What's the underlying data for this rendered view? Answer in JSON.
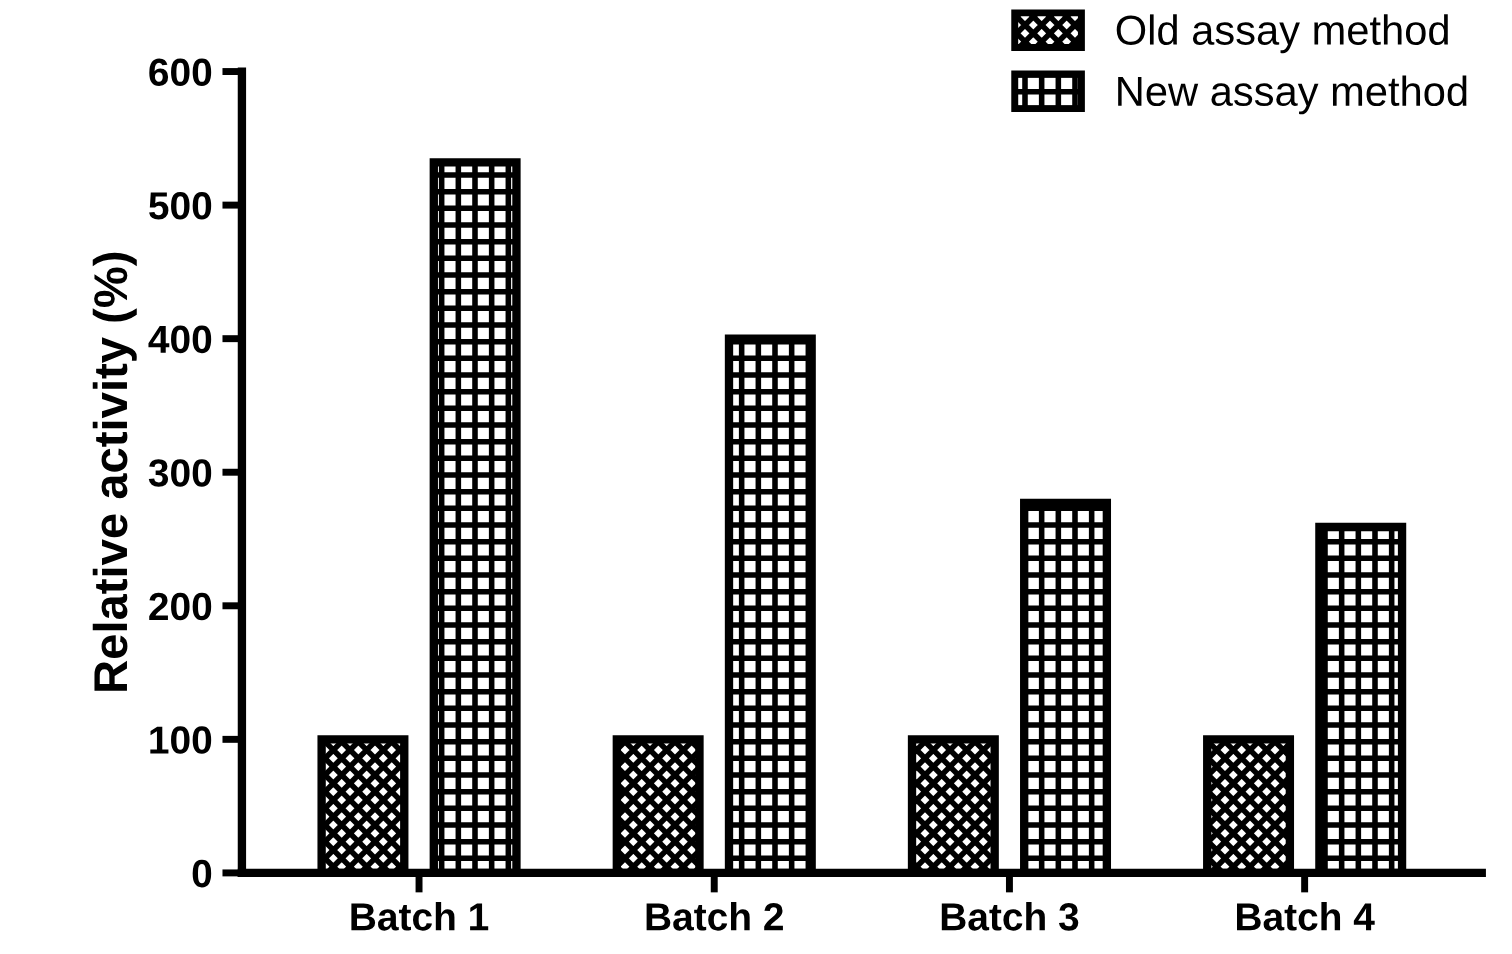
{
  "chart_data": {
    "type": "bar",
    "ylabel": "Relative activity (%)",
    "categories": [
      "Batch 1",
      "Batch 2",
      "Batch 3",
      "Batch 4"
    ],
    "series": [
      {
        "name": "Old assay method",
        "color": "#000000",
        "values": [
          100,
          100,
          100,
          100
        ]
      },
      {
        "name": "New assay method",
        "color": "#000000",
        "values": [
          532,
          400,
          277,
          259
        ]
      }
    ],
    "ylim": [
      0,
      600
    ],
    "yticks": [
      0,
      100,
      200,
      300,
      400,
      500,
      600
    ],
    "grid": false,
    "legend": "top right"
  }
}
